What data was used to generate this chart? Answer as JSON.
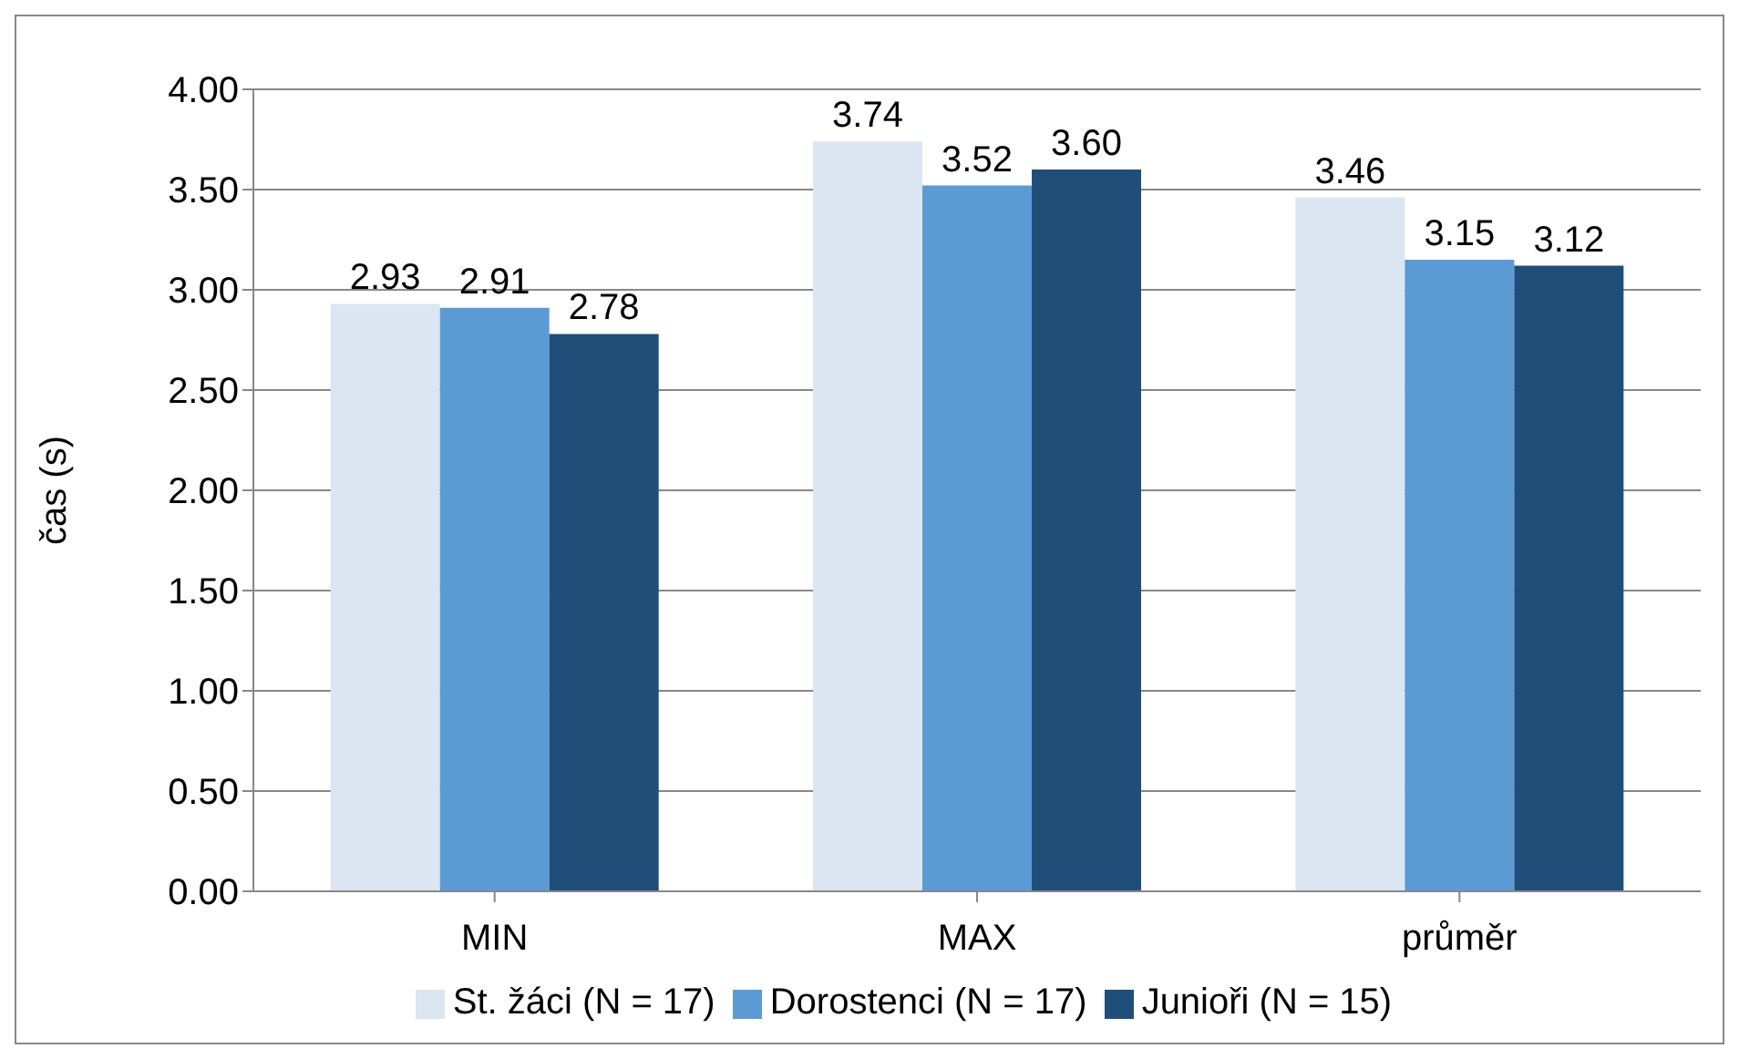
{
  "chart_data": {
    "type": "bar",
    "ylabel": "čas (s)",
    "categories": [
      "MIN",
      "MAX",
      "průměr"
    ],
    "series": [
      {
        "name": "St. žáci (N = 17)",
        "color": "#dce6f2",
        "values": [
          2.93,
          3.74,
          3.46
        ],
        "value_labels": [
          "2.93",
          "3.74",
          "3.46"
        ]
      },
      {
        "name": "Dorostenci (N = 17)",
        "color": "#5b9bd5",
        "values": [
          2.91,
          3.52,
          3.15
        ],
        "value_labels": [
          "2.91",
          "3.52",
          "3.15"
        ]
      },
      {
        "name": "Junioři (N = 15)",
        "color": "#1f4e79",
        "values": [
          2.78,
          3.6,
          3.12
        ],
        "value_labels": [
          "2.78",
          "3.60",
          "3.12"
        ]
      }
    ],
    "ylim": [
      0,
      4
    ],
    "yticks": [
      {
        "value": 0,
        "label": "0.00"
      },
      {
        "value": 0.5,
        "label": "0.50"
      },
      {
        "value": 1,
        "label": "1.00"
      },
      {
        "value": 1.5,
        "label": "1.50"
      },
      {
        "value": 2,
        "label": "2.00"
      },
      {
        "value": 2.5,
        "label": "2.50"
      },
      {
        "value": 3,
        "label": "3.00"
      },
      {
        "value": 3.5,
        "label": "3.50"
      },
      {
        "value": 4,
        "label": "4.00"
      }
    ],
    "grid": "y",
    "legend": "bottom"
  }
}
